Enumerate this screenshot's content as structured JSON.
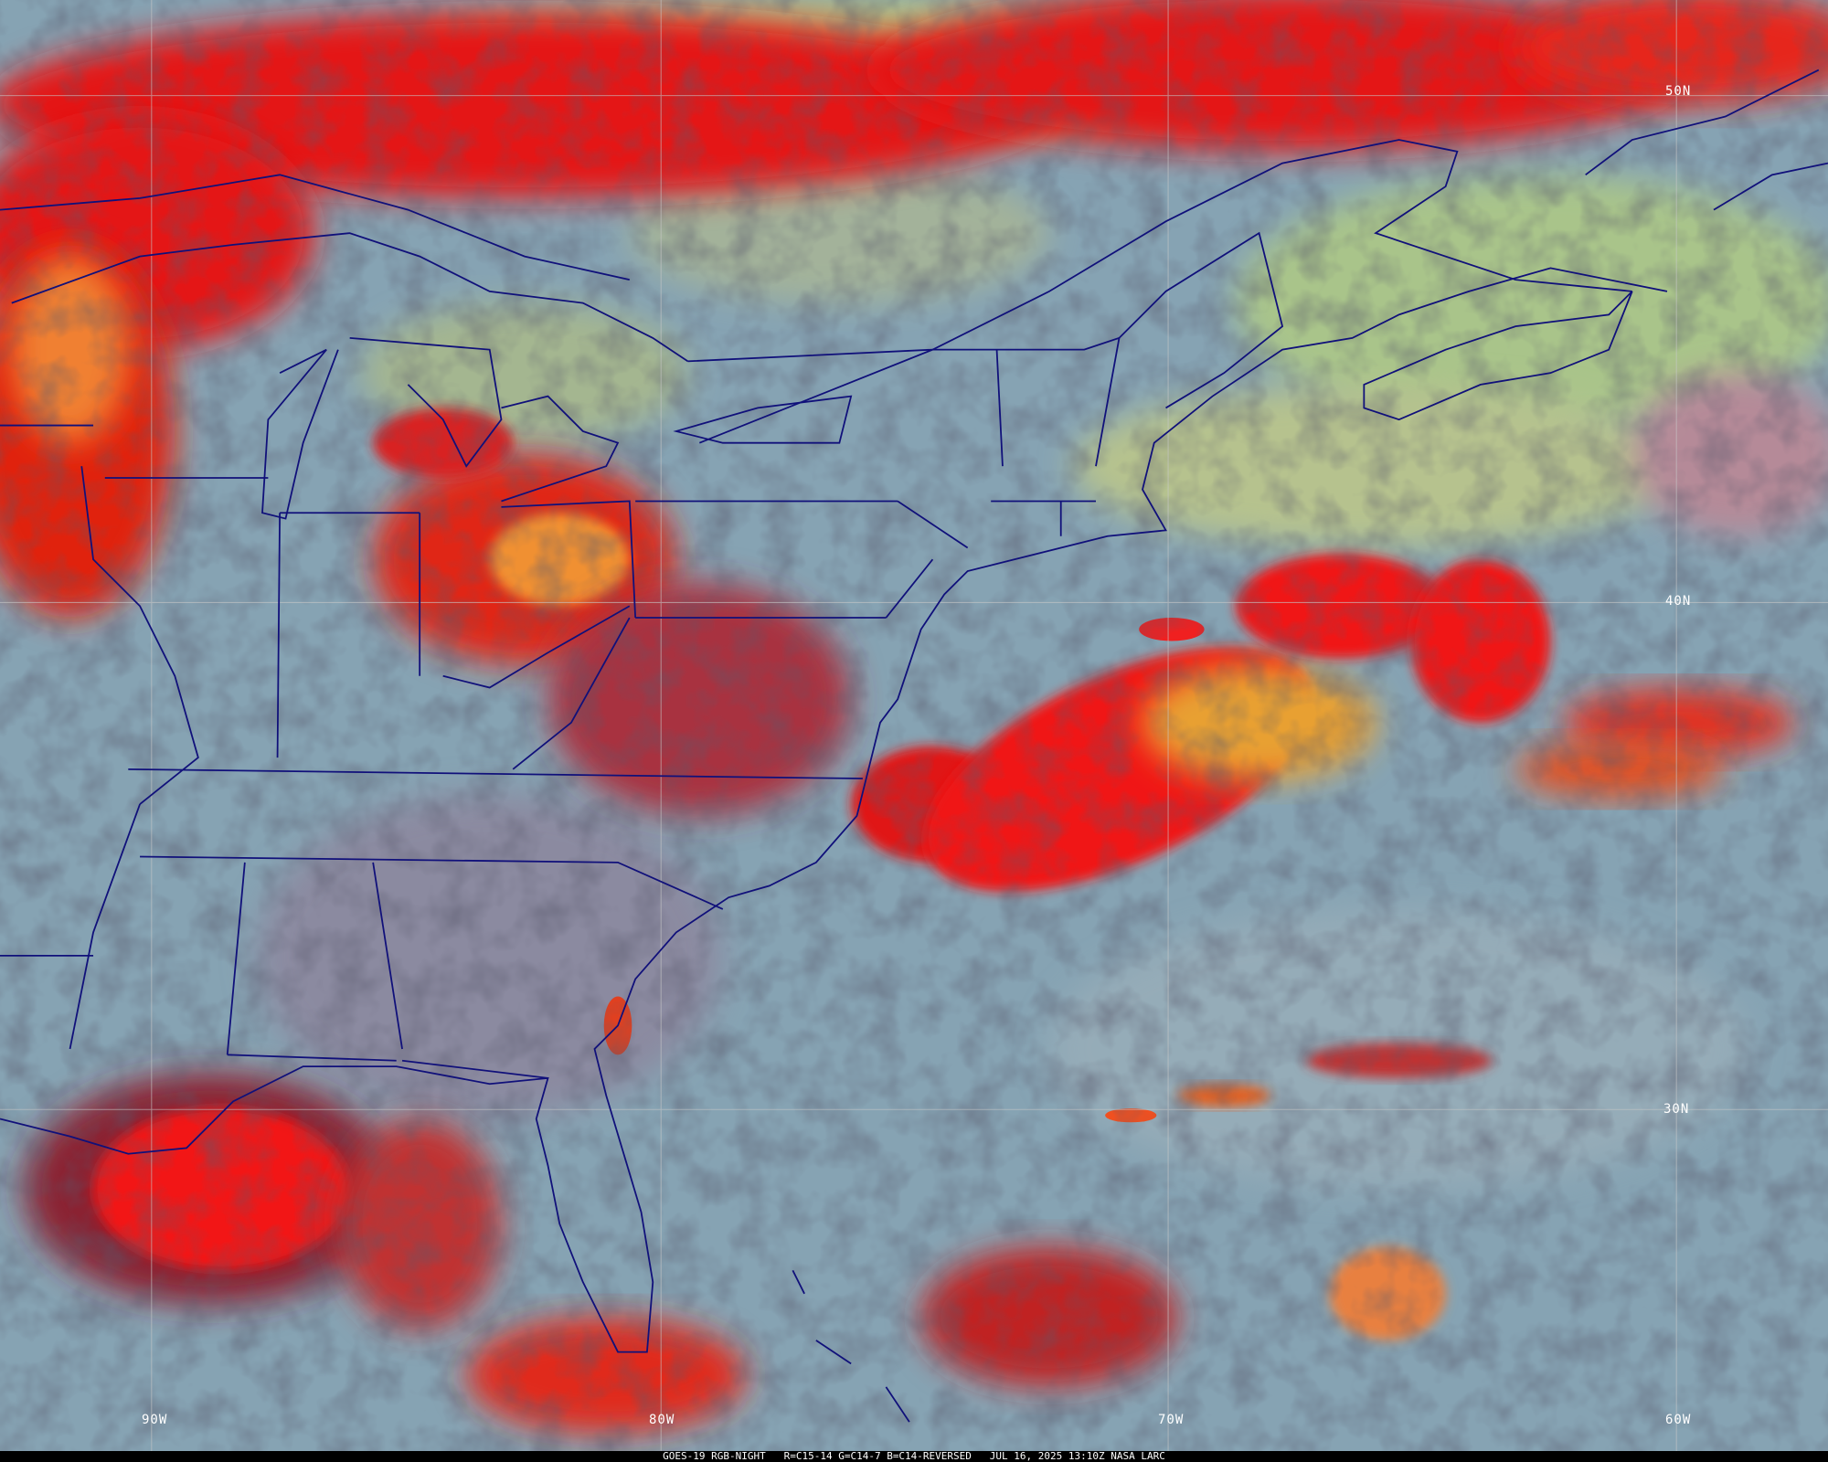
{
  "caption": "GOES-19 RGB-NIGHT   R=C15-14 G=C14-7 B=C14-REVERSED   JUL 16, 2025 13:10Z NASA LARC",
  "latitude_labels": [
    "50N",
    "40N",
    "30N"
  ],
  "longitude_labels": [
    "90W",
    "80W",
    "70W",
    "60W"
  ],
  "colors": {
    "clear_sky": "#86a3b3",
    "high_cloud": "#e81010",
    "cloud_top_warm": "#f0a030",
    "low_cloud": "#a8c080",
    "boundaries": "#10107a",
    "gridlines": "#c8c8c8"
  }
}
